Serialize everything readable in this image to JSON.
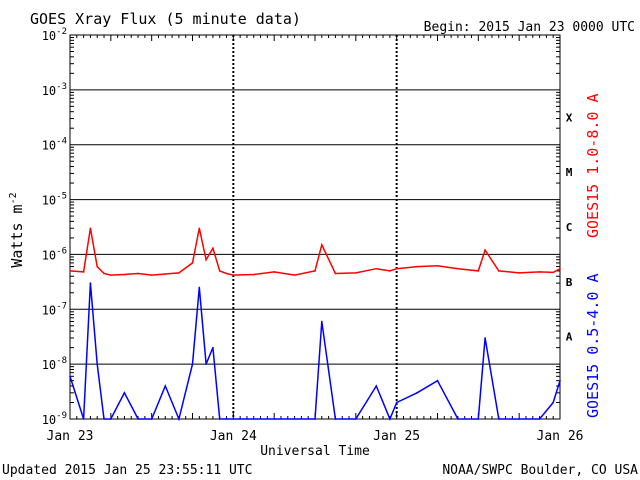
{
  "chart_data": {
    "type": "line",
    "title": "GOES Xray Flux (5 minute data)",
    "begin_label": "Begin:  2015 Jan 23 0000 UTC",
    "xlabel": "Universal Time",
    "ylabel": "Watts m",
    "ylabel_exponent": "-2",
    "y_scale": "log",
    "ylim": [
      1e-09,
      0.01
    ],
    "y_ticks": [
      {
        "base": "10",
        "exp": "-2",
        "value": 0.01
      },
      {
        "base": "10",
        "exp": "-3",
        "value": 0.001
      },
      {
        "base": "10",
        "exp": "-4",
        "value": 0.0001
      },
      {
        "base": "10",
        "exp": "-5",
        "value": 1e-05
      },
      {
        "base": "10",
        "exp": "-6",
        "value": 1e-06
      },
      {
        "base": "10",
        "exp": "-7",
        "value": 1e-07
      },
      {
        "base": "10",
        "exp": "-8",
        "value": 1e-08
      },
      {
        "base": "10",
        "exp": "-9",
        "value": 1e-09
      }
    ],
    "x_ticks": [
      "Jan 23",
      "Jan 24",
      "Jan 25",
      "Jan 26"
    ],
    "xlim": [
      "2015-01-23T00:00",
      "2015-01-26T00:00"
    ],
    "flare_classes": [
      {
        "label": "X",
        "value": 0.000316
      },
      {
        "label": "M",
        "value": 3.16e-05
      },
      {
        "label": "C",
        "value": 3.16e-06
      },
      {
        "label": "B",
        "value": 3.16e-07
      },
      {
        "label": "A",
        "value": 3.16e-08
      }
    ],
    "series": [
      {
        "name": "GOES15 1.0-8.0 A",
        "color": "#ff0000",
        "x": [
          "2015-01-23T00:00",
          "2015-01-23T02:00",
          "2015-01-23T03:00",
          "2015-01-23T04:00",
          "2015-01-23T05:00",
          "2015-01-23T06:00",
          "2015-01-23T08:00",
          "2015-01-23T10:00",
          "2015-01-23T12:00",
          "2015-01-23T14:00",
          "2015-01-23T16:00",
          "2015-01-23T18:00",
          "2015-01-23T19:00",
          "2015-01-23T20:00",
          "2015-01-23T21:00",
          "2015-01-23T22:00",
          "2015-01-23T23:00",
          "2015-01-24T00:00",
          "2015-01-24T03:00",
          "2015-01-24T06:00",
          "2015-01-24T09:00",
          "2015-01-24T12:00",
          "2015-01-24T13:00",
          "2015-01-24T15:00",
          "2015-01-24T18:00",
          "2015-01-24T21:00",
          "2015-01-24T23:00",
          "2015-01-25T00:00",
          "2015-01-25T03:00",
          "2015-01-25T06:00",
          "2015-01-25T09:00",
          "2015-01-25T12:00",
          "2015-01-25T13:00",
          "2015-01-25T15:00",
          "2015-01-25T18:00",
          "2015-01-25T21:00",
          "2015-01-25T23:00",
          "2015-01-26T00:00"
        ],
        "values": [
          5e-07,
          4.8e-07,
          3e-06,
          6e-07,
          4.5e-07,
          4.2e-07,
          4.3e-07,
          4.5e-07,
          4.2e-07,
          4.4e-07,
          4.6e-07,
          7e-07,
          3e-06,
          8e-07,
          1.3e-06,
          5e-07,
          4.5e-07,
          4.2e-07,
          4.3e-07,
          4.8e-07,
          4.2e-07,
          5e-07,
          1.5e-06,
          4.5e-07,
          4.6e-07,
          5.5e-07,
          5e-07,
          5.5e-07,
          6e-07,
          6.2e-07,
          5.5e-07,
          5e-07,
          1.2e-06,
          5e-07,
          4.6e-07,
          4.8e-07,
          4.7e-07,
          5.5e-07
        ]
      },
      {
        "name": "GOES15 0.5-4.0 A",
        "color": "#0000ff",
        "x": [
          "2015-01-23T00:00",
          "2015-01-23T02:00",
          "2015-01-23T03:00",
          "2015-01-23T04:00",
          "2015-01-23T05:00",
          "2015-01-23T06:00",
          "2015-01-23T08:00",
          "2015-01-23T10:00",
          "2015-01-23T12:00",
          "2015-01-23T14:00",
          "2015-01-23T16:00",
          "2015-01-23T18:00",
          "2015-01-23T19:00",
          "2015-01-23T20:00",
          "2015-01-23T21:00",
          "2015-01-23T22:00",
          "2015-01-23T23:00",
          "2015-01-24T00:00",
          "2015-01-24T03:00",
          "2015-01-24T06:00",
          "2015-01-24T09:00",
          "2015-01-24T12:00",
          "2015-01-24T13:00",
          "2015-01-24T15:00",
          "2015-01-24T18:00",
          "2015-01-24T21:00",
          "2015-01-24T23:00",
          "2015-01-25T00:00",
          "2015-01-25T03:00",
          "2015-01-25T06:00",
          "2015-01-25T09:00",
          "2015-01-25T12:00",
          "2015-01-25T13:00",
          "2015-01-25T15:00",
          "2015-01-25T18:00",
          "2015-01-25T21:00",
          "2015-01-25T23:00",
          "2015-01-26T00:00"
        ],
        "values": [
          6e-09,
          1e-09,
          3e-07,
          1e-08,
          1e-09,
          1e-09,
          3e-09,
          1e-09,
          1e-09,
          4e-09,
          1e-09,
          1e-08,
          2.5e-07,
          1e-08,
          2e-08,
          1e-09,
          1e-09,
          1e-09,
          1e-09,
          1e-09,
          1e-09,
          1e-09,
          6e-08,
          1e-09,
          1e-09,
          4e-09,
          1e-09,
          2e-09,
          3e-09,
          5e-09,
          1e-09,
          1e-09,
          3e-08,
          1e-09,
          1e-09,
          1e-09,
          2e-09,
          5e-09
        ]
      }
    ]
  },
  "footer": {
    "updated": "Updated 2015 Jan 25 23:55:11 UTC",
    "credit": "NOAA/SWPC Boulder, CO USA"
  }
}
